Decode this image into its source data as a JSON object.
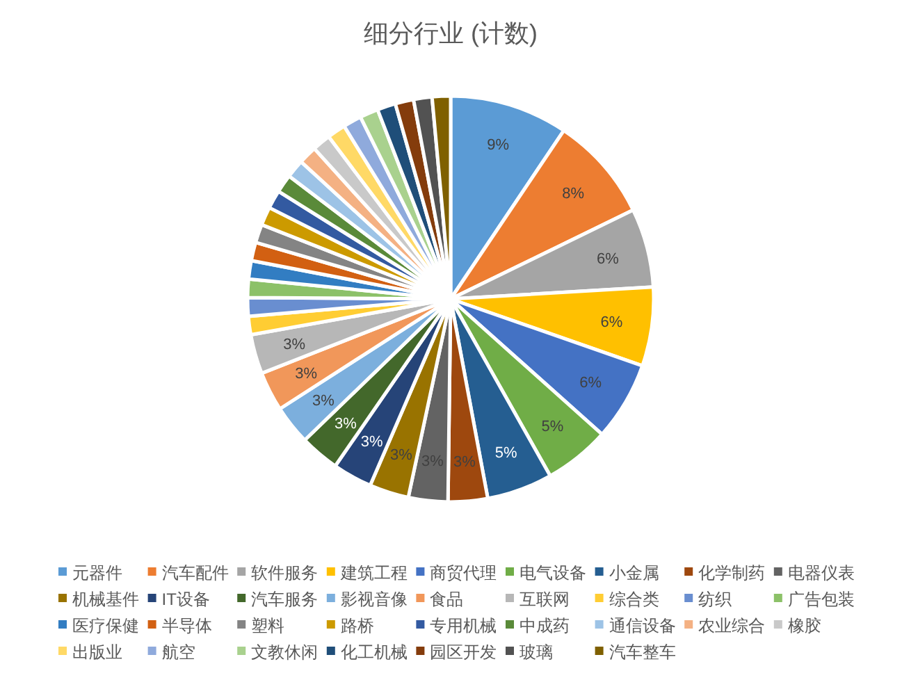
{
  "chart_data": {
    "type": "pie",
    "title": "细分行业 (计数)",
    "categories": [
      "元器件",
      "汽车配件",
      "软件服务",
      "建筑工程",
      "商贸代理",
      "电气设备",
      "小金属",
      "化学制药",
      "电器仪表",
      "机械基件",
      "IT设备",
      "汽车服务",
      "影视音像",
      "食品",
      "互联网",
      "综合类",
      "纺织",
      "广告包装",
      "医疗保健",
      "半导体",
      "塑料",
      "路桥",
      "专用机械",
      "中成药",
      "通信设备",
      "农业综合",
      "橡胶",
      "出版业",
      "航空",
      "文教休闲",
      "化工机械",
      "园区开发",
      "玻璃",
      "汽车整车"
    ],
    "values": [
      9,
      8,
      6,
      6,
      6,
      5,
      5,
      3,
      3,
      3,
      3,
      3,
      3,
      3,
      3,
      1.4,
      1.4,
      1.4,
      1.4,
      1.4,
      1.4,
      1.4,
      1.4,
      1.4,
      1.4,
      1.4,
      1.4,
      1.4,
      1.4,
      1.4,
      1.4,
      1.4,
      1.4,
      1.4
    ],
    "value_labels": [
      "9%",
      "8%",
      "6%",
      "6%",
      "6%",
      "5%",
      "5%",
      "3%",
      "3%",
      "3%",
      "3%",
      "3%",
      "3%",
      "3%",
      "3%",
      null,
      null,
      null,
      null,
      null,
      null,
      null,
      null,
      null,
      null,
      null,
      null,
      null,
      null,
      null,
      null,
      null,
      null,
      null
    ],
    "colors": [
      "#5b9bd5",
      "#ed7d31",
      "#a5a5a5",
      "#ffc000",
      "#4472c4",
      "#70ad47",
      "#255e91",
      "#9e480e",
      "#636363",
      "#997300",
      "#264478",
      "#43682b",
      "#7cafdd",
      "#f1975a",
      "#b7b7b7",
      "#ffcd33",
      "#698ed0",
      "#8cc168",
      "#327dc2",
      "#d26012",
      "#848484",
      "#cc9a00",
      "#335aa1",
      "#5a8a39",
      "#9dc3e6",
      "#f4b183",
      "#c9c9c9",
      "#ffd966",
      "#8faadc",
      "#a9d18e",
      "#1f4e79",
      "#843c0c",
      "#525252",
      "#7f6000"
    ],
    "legend": "bottom"
  }
}
